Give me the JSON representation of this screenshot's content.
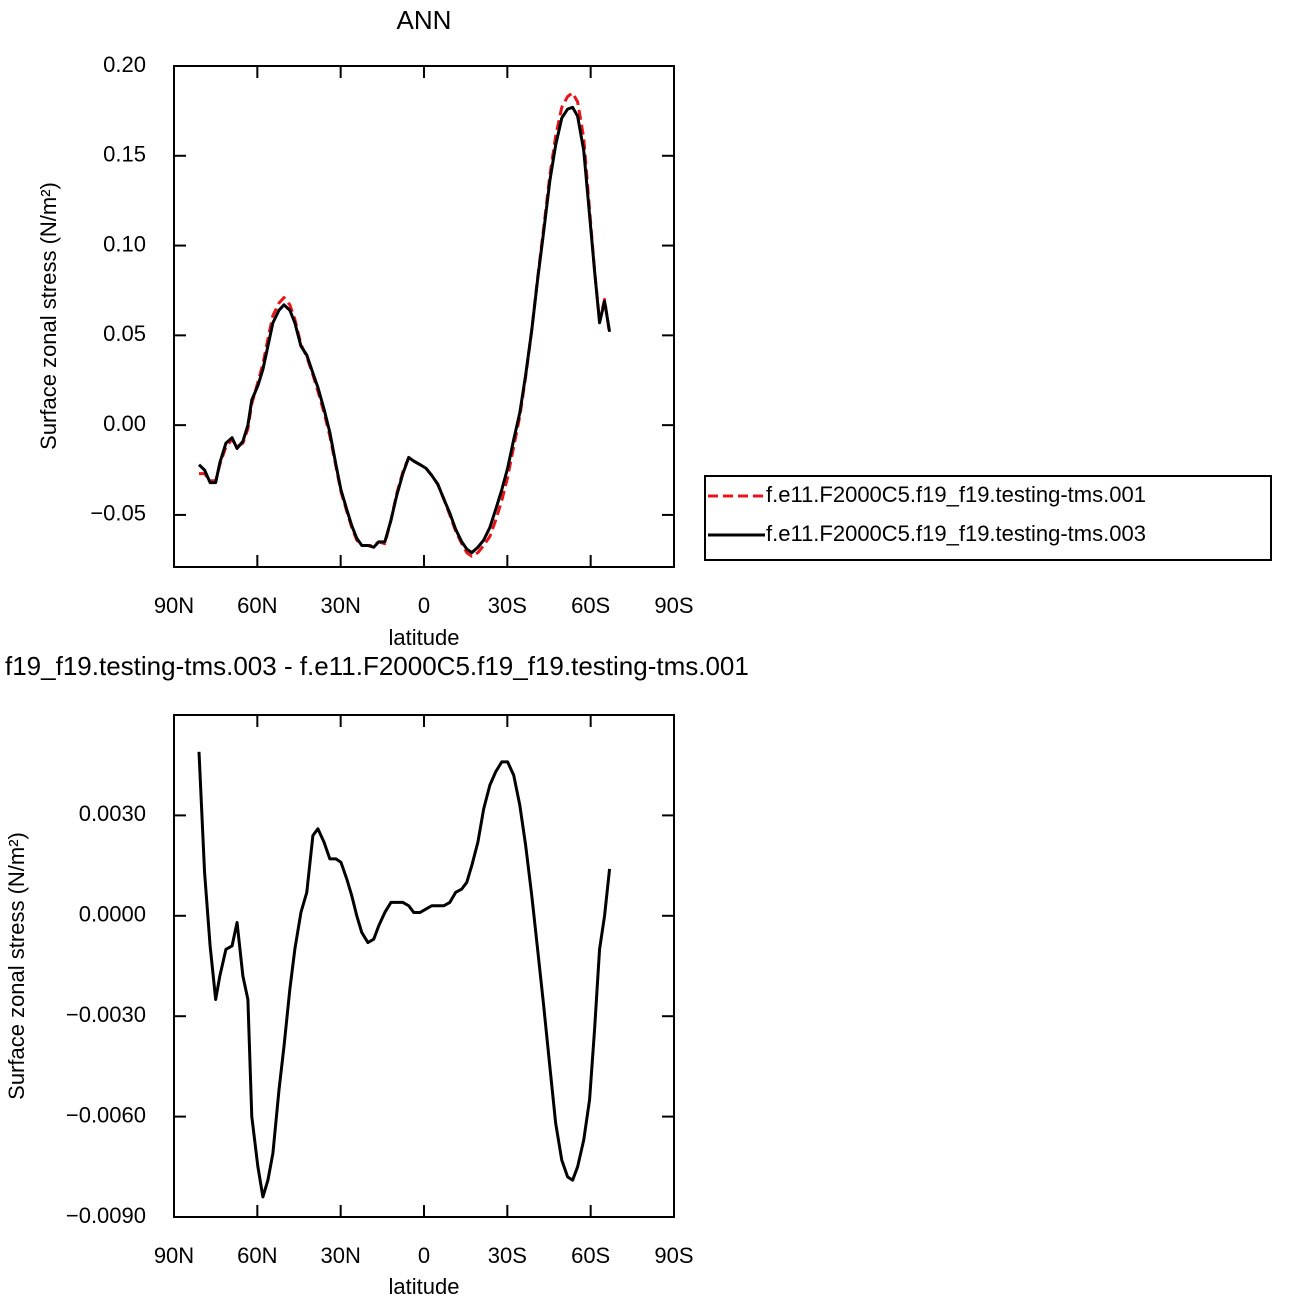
{
  "chart_data": [
    {
      "type": "line",
      "title": "ANN",
      "x_label": "latitude",
      "y_label": "Surface zonal stress (N/m²)",
      "x": [
        81,
        79,
        77,
        75,
        73.5,
        71.3,
        69.1,
        67.3,
        65.2,
        63.4,
        62,
        59.8,
        58,
        56.2,
        54.4,
        52.2,
        50.4,
        48.3,
        46.5,
        44.3,
        42.2,
        40,
        38.2,
        36,
        33.9,
        31.7,
        29.9,
        27.8,
        26,
        24.2,
        22.4,
        20.2,
        18.1,
        16.3,
        14.1,
        11.9,
        9.8,
        7.6,
        5.5,
        3.7,
        1.4,
        -0.7,
        -2.8,
        -5,
        -7.1,
        -9.3,
        -11.4,
        -13.6,
        -15.4,
        -17.2,
        -19.4,
        -21.5,
        -23.7,
        -25.8,
        -28,
        -30.1,
        -32.3,
        -34.5,
        -36.6,
        -38.8,
        -40.9,
        -43.1,
        -45.3,
        -47.4,
        -49.6,
        -51.7,
        -53.5,
        -55.3,
        -57.5,
        -59.6,
        -61.4,
        -63.2,
        -65,
        -66.8
      ],
      "series": [
        {
          "name": "f.e11.F2000C5.f19_f19.testing-tms.001",
          "color": "#e8141a",
          "dashed": true,
          "values": [
            -0.027,
            -0.027,
            -0.031,
            -0.031,
            -0.022,
            -0.012,
            -0.008,
            -0.012,
            -0.01,
            -0.002,
            0.012,
            0.024,
            0.034,
            0.048,
            0.061,
            0.068,
            0.071,
            0.067,
            0.059,
            0.045,
            0.038,
            0.028,
            0.019,
            0.007,
            -0.006,
            -0.023,
            -0.037,
            -0.048,
            -0.057,
            -0.064,
            -0.067,
            -0.067,
            -0.067,
            -0.065,
            -0.066,
            -0.053,
            -0.038,
            -0.026,
            -0.018,
            -0.02,
            -0.022,
            -0.024,
            -0.028,
            -0.033,
            -0.041,
            -0.05,
            -0.059,
            -0.066,
            -0.071,
            -0.073,
            -0.071,
            -0.067,
            -0.062,
            -0.053,
            -0.042,
            -0.029,
            -0.012,
            0.005,
            0.027,
            0.053,
            0.082,
            0.11,
            0.139,
            0.161,
            0.177,
            0.183,
            0.185,
            0.18,
            0.16,
            0.12,
            0.086,
            0.058,
            0.07,
            0.051
          ]
        },
        {
          "name": "f.e11.F2000C5.f19_f19.testing-tms.003",
          "color": "#000000",
          "dashed": false,
          "values": [
            -0.022,
            -0.025,
            -0.032,
            -0.032,
            -0.021,
            -0.01,
            -0.007,
            -0.013,
            -0.009,
            0,
            0.014,
            0.022,
            0.031,
            0.044,
            0.057,
            0.064,
            0.067,
            0.064,
            0.057,
            0.044,
            0.039,
            0.029,
            0.021,
            0.009,
            -0.004,
            -0.022,
            -0.036,
            -0.047,
            -0.056,
            -0.063,
            -0.067,
            -0.067,
            -0.068,
            -0.065,
            -0.065,
            -0.053,
            -0.039,
            -0.027,
            -0.018,
            -0.02,
            -0.022,
            -0.024,
            -0.028,
            -0.033,
            -0.041,
            -0.049,
            -0.058,
            -0.065,
            -0.069,
            -0.071,
            -0.068,
            -0.064,
            -0.057,
            -0.047,
            -0.036,
            -0.024,
            -0.008,
            0.007,
            0.028,
            0.053,
            0.081,
            0.108,
            0.136,
            0.156,
            0.171,
            0.176,
            0.177,
            0.172,
            0.153,
            0.117,
            0.086,
            0.057,
            0.069,
            0.052
          ]
        }
      ],
      "xlim": [
        90,
        -90
      ],
      "xticks": [
        {
          "value": 90,
          "label": "90N"
        },
        {
          "value": 60,
          "label": "60N"
        },
        {
          "value": 30,
          "label": "30N"
        },
        0,
        {
          "value": -30,
          "label": "30S"
        },
        {
          "value": -60,
          "label": "60S"
        },
        {
          "value": -90,
          "label": "90S"
        }
      ],
      "ylim": [
        -0.079,
        0.2
      ],
      "yticks": [
        {
          "value": 0.2,
          "label": "0.20"
        },
        {
          "value": 0.15,
          "label": "0.15"
        },
        {
          "value": 0.1,
          "label": "0.10"
        },
        {
          "value": 0.05,
          "label": "0.05"
        },
        {
          "value": 0,
          "label": "0.00"
        },
        {
          "value": -0.05,
          "label": "−0.05"
        }
      ],
      "legend": "outside-right"
    },
    {
      "type": "line",
      "title": "f19_f19.testing-tms.003 - f.e11.F2000C5.f19_f19.testing-tms.001",
      "x_label": "latitude",
      "y_label": "Surface zonal stress (N/m²)",
      "x": [
        81,
        79,
        77,
        75,
        73.5,
        71.3,
        69.1,
        67.3,
        65.2,
        63.4,
        62,
        59.8,
        58,
        56.2,
        54.4,
        52.2,
        50.4,
        48.3,
        46.5,
        44.3,
        42.2,
        40,
        38.2,
        36,
        33.9,
        31.7,
        29.9,
        27.8,
        26,
        24.2,
        22.4,
        20.2,
        18.1,
        16.3,
        14.1,
        11.9,
        9.8,
        7.6,
        5.5,
        3.7,
        1.4,
        -0.7,
        -2.8,
        -5,
        -7.1,
        -9.3,
        -11.4,
        -13.6,
        -15.4,
        -17.2,
        -19.4,
        -21.5,
        -23.7,
        -25.8,
        -28,
        -30.1,
        -32.3,
        -34.5,
        -36.6,
        -38.8,
        -40.9,
        -43.1,
        -45.3,
        -47.4,
        -49.6,
        -51.7,
        -53.5,
        -55.3,
        -57.5,
        -59.6,
        -61.4,
        -63.2,
        -65,
        -66.8
      ],
      "color": "#000000",
      "values": [
        0.0049,
        0.0013,
        -0.0009,
        -0.0025,
        -0.0018,
        -0.001,
        -0.0009,
        -0.0002,
        -0.0018,
        -0.0025,
        -0.006,
        -0.0075,
        -0.0084,
        -0.0079,
        -0.0071,
        -0.0052,
        -0.0039,
        -0.0022,
        -0.001,
        0.0001,
        0.0007,
        0.0024,
        0.0026,
        0.0022,
        0.0017,
        0.0017,
        0.0016,
        0.0011,
        0.0006,
        0,
        -0.0005,
        -0.0008,
        -0.0007,
        -0.0003,
        0.0001,
        0.0004,
        0.0004,
        0.0004,
        0.0003,
        0.0001,
        0.0001,
        0.0002,
        0.0003,
        0.0003,
        0.0003,
        0.0004,
        0.0007,
        0.0008,
        0.001,
        0.0015,
        0.0022,
        0.0032,
        0.0039,
        0.0043,
        0.0046,
        0.0046,
        0.0042,
        0.0033,
        0.0021,
        0.0006,
        -0.001,
        -0.0027,
        -0.0045,
        -0.0062,
        -0.0073,
        -0.0078,
        -0.0079,
        -0.0075,
        -0.0067,
        -0.0055,
        -0.0034,
        -0.001,
        0,
        0.0014
      ],
      "xlim": [
        90,
        -90
      ],
      "xticks": [
        {
          "value": 90,
          "label": "90N"
        },
        {
          "value": 60,
          "label": "60N"
        },
        {
          "value": 30,
          "label": "30N"
        },
        0,
        {
          "value": -30,
          "label": "30S"
        },
        {
          "value": -60,
          "label": "60S"
        },
        {
          "value": -90,
          "label": "90S"
        }
      ],
      "ylim": [
        -0.009,
        0.006
      ],
      "yticks": [
        {
          "value": 0.003,
          "label": "0.0030"
        },
        {
          "value": 0,
          "label": "0.0000"
        },
        {
          "value": -0.003,
          "label": "−0.0030"
        },
        {
          "value": -0.006,
          "label": "−0.0060"
        },
        {
          "value": -0.009,
          "label": "−0.0090"
        }
      ]
    }
  ]
}
